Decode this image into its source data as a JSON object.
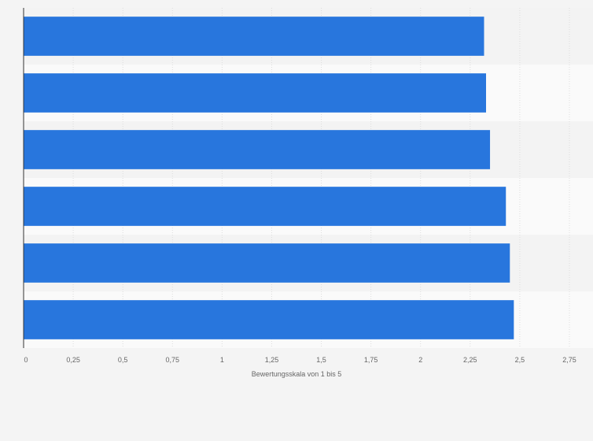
{
  "chart_data": {
    "type": "bar",
    "orientation": "horizontal",
    "categories": [
      "",
      "",
      "",
      "",
      "",
      ""
    ],
    "values": [
      2.32,
      2.33,
      2.35,
      2.43,
      2.45,
      2.47
    ],
    "title": "",
    "xlabel": "Bewertungsskala von 1 bis 5",
    "ylabel": "",
    "xlim": [
      0,
      2.75
    ],
    "x_ticks": [
      0,
      0.25,
      0.5,
      0.75,
      1,
      1.25,
      1.5,
      1.75,
      2,
      2.25,
      2.5,
      2.75
    ],
    "x_tick_labels": [
      "0",
      "0,25",
      "0,5",
      "0,75",
      "1",
      "1,25",
      "1,5",
      "1,75",
      "2",
      "2,25",
      "2,5",
      "2,75"
    ],
    "grid": true,
    "legend": "none",
    "bar_color": "#2876dd",
    "band_colors": [
      "#f3f3f3",
      "#fafafa"
    ],
    "background_color": "#f4f4f4",
    "grid_color": "#dddddd",
    "axis_color": "#333333",
    "text_color": "#666666"
  }
}
